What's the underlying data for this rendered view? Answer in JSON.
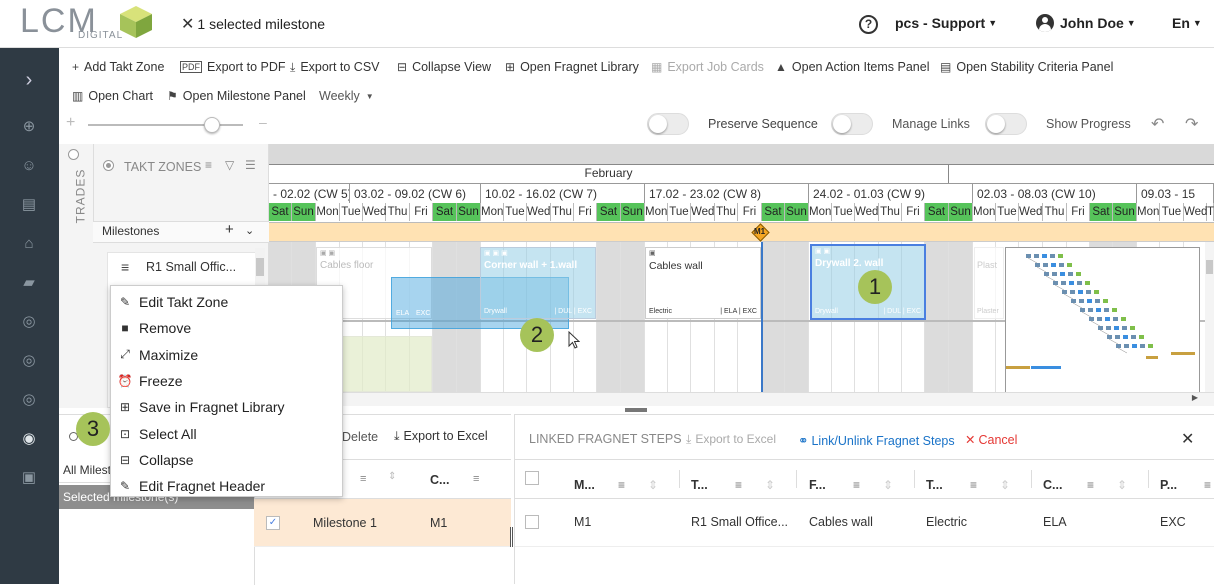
{
  "header": {
    "logo_text": "LCM",
    "logo_sub": "DIGITAL",
    "selection_label": "1 selected milestone",
    "project": "pcs - Support",
    "user": "John Doe",
    "language": "En"
  },
  "toolbar": {
    "add_takt_zone": "Add Takt Zone",
    "export_pdf": "Export to PDF",
    "export_csv": "Export to CSV",
    "collapse_view": "Collapse View",
    "open_fragnet_library": "Open Fragnet Library",
    "export_job_cards": "Export Job Cards",
    "open_action_items": "Open Action Items Panel",
    "open_stability": "Open Stability Criteria Panel",
    "open_chart": "Open Chart",
    "open_milestone_panel": "Open Milestone Panel",
    "view_mode": "Weekly",
    "preserve_sequence": "Preserve Sequence",
    "manage_links": "Manage Links",
    "show_progress": "Show Progress"
  },
  "zoom": {
    "level": 0.8
  },
  "left_panel": {
    "trades_label": "TRADES",
    "takt_zones_label": "TAKT ZONES",
    "milestones_label": "Milestones",
    "zone_name": "R1 Small Offic..."
  },
  "timeline": {
    "month": "February",
    "weeks": [
      "- 02.02 (CW 5)",
      "03.02 - 09.02 (CW 6)",
      "10.02 - 16.02 (CW 7)",
      "17.02 - 23.02 (CW 8)",
      "24.02 - 01.03 (CW 9)",
      "02.03 - 08.03 (CW 10)",
      "09.03 - 15"
    ],
    "days": [
      "Sat",
      "Sun",
      "Mon",
      "Tue",
      "Wed",
      "Thu",
      "Fri",
      "Sat",
      "Sun",
      "Mon",
      "Tue",
      "Wed",
      "Thu",
      "Fri",
      "Sat",
      "Sun",
      "Mon",
      "Tue",
      "Wed",
      "Thu",
      "Fri",
      "Sat",
      "Sun",
      "Mon",
      "Tue",
      "Wed",
      "Thu",
      "Fri",
      "Sat",
      "Sun",
      "Mon",
      "Tue",
      "Wed",
      "Thu",
      "Fri",
      "Sat",
      "Sun",
      "Mon",
      "Tue",
      "Wed",
      "Thu"
    ],
    "milestone_marker": "M1"
  },
  "cards": [
    {
      "title": "Cables floor",
      "left": "",
      "right": ""
    },
    {
      "title": "Corner wall + 1.wall",
      "left": "Drywall",
      "right": "| DUL | EXC"
    },
    {
      "title": "Cables wall",
      "left": "Electric",
      "right": "| ELA | EXC"
    },
    {
      "title": "Drywall 2. wall",
      "left": "Drywall",
      "right": "| DUL | EXC"
    },
    {
      "title": "Plast",
      "left": "Plaster",
      "right": ""
    },
    {
      "title": "",
      "left": "ELA",
      "right": "EXC"
    }
  ],
  "context_menu": [
    {
      "label": "Edit Takt Zone",
      "icon": "pencil-icon"
    },
    {
      "label": "Remove",
      "icon": "trash-icon"
    },
    {
      "label": "Maximize",
      "icon": "maximize-icon"
    },
    {
      "label": "Freeze",
      "icon": "alarm-icon"
    },
    {
      "label": "Save in Fragnet Library",
      "icon": "library-add-icon"
    },
    {
      "label": "Select All",
      "icon": "select-all-icon"
    },
    {
      "label": "Collapse",
      "icon": "collapse-icon"
    },
    {
      "label": "Edit Fragnet Header",
      "icon": "pencil-icon"
    }
  ],
  "annotations": [
    "1",
    "2",
    "3"
  ],
  "milestones_panel": {
    "delete": "Delete",
    "export_excel": "Export to Excel",
    "filter_label": "All Milest",
    "selected_label": "Selected milestone(s)",
    "col_c": "C...",
    "row": {
      "name": "Milestone 1",
      "code": "M1"
    }
  },
  "linked_panel": {
    "title": "LINKED FRAGNET STEPS",
    "export_excel": "Export to Excel",
    "link_unlink": "Link/Unlink Fragnet Steps",
    "cancel": "Cancel",
    "columns": [
      "M...",
      "T...",
      "F...",
      "T...",
      "C...",
      "P..."
    ],
    "row": [
      "M1",
      "R1 Small Office...",
      "Cables wall",
      "Electric",
      "ELA",
      "EXC"
    ]
  },
  "colors": {
    "sidebar": "#2f3a44",
    "weekend": "#56c35a",
    "badge": "#a6c35a",
    "link": "#1a73c8",
    "cancel": "#e53935",
    "milestone_band": "#ffe2b3"
  }
}
